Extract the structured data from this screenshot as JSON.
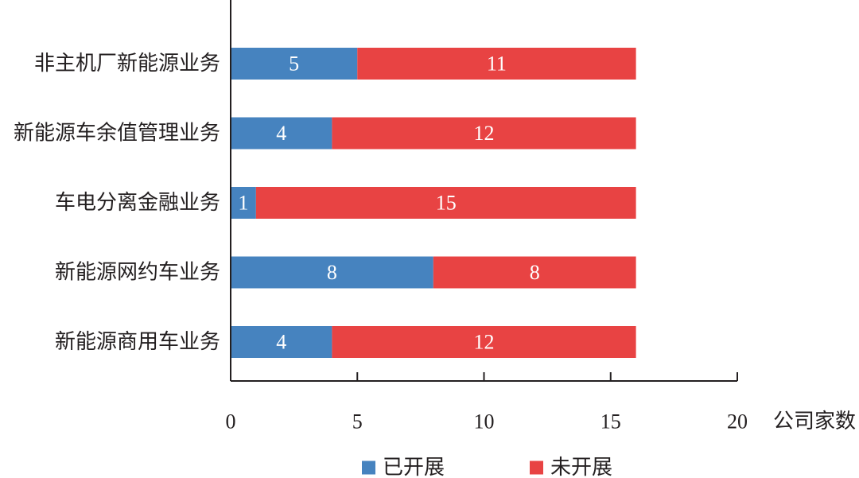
{
  "chart_data": {
    "type": "bar",
    "orientation": "horizontal",
    "stacked": true,
    "categories": [
      "非主机厂新能源业务",
      "新能源车余值管理业务",
      "车电分离金融业务",
      "新能源网约车业务",
      "新能源商用车业务"
    ],
    "series": [
      {
        "name": "已开展",
        "color": "#4683bf",
        "values": [
          5,
          4,
          1,
          8,
          4
        ]
      },
      {
        "name": "未开展",
        "color": "#e84343",
        "values": [
          11,
          12,
          15,
          8,
          12
        ]
      }
    ],
    "xlabel": "公司家数",
    "xlim": [
      0,
      20
    ],
    "xticks": [
      "0",
      "5",
      "10",
      "15",
      "20"
    ],
    "legend": "bottom",
    "grid": false
  }
}
